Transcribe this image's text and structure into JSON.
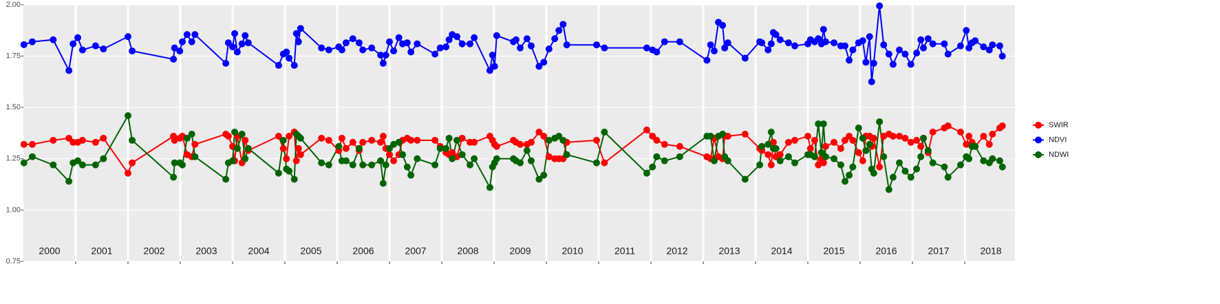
{
  "chart_data": {
    "type": "line",
    "x": [
      2000.01,
      2000.17,
      2000.57,
      2000.87,
      2000.95,
      2001.04,
      2001.13,
      2001.38,
      2001.53,
      2002.0,
      2002.08,
      2002.87,
      2002.89,
      2002.99,
      2003.04,
      2003.13,
      2003.22,
      2003.28,
      2003.87,
      2003.92,
      2004.0,
      2004.04,
      2004.09,
      2004.18,
      2004.24,
      2004.3,
      2004.88,
      2004.97,
      2005.03,
      2005.08,
      2005.18,
      2005.22,
      2005.26,
      2005.3,
      2005.7,
      2005.84,
      2006.03,
      2006.09,
      2006.17,
      2006.3,
      2006.42,
      2006.49,
      2006.66,
      2006.83,
      2006.88,
      2006.93,
      2007.0,
      2007.08,
      2007.18,
      2007.25,
      2007.34,
      2007.41,
      2007.53,
      2007.87,
      2007.97,
      2008.08,
      2008.14,
      2008.2,
      2008.29,
      2008.39,
      2008.54,
      2008.62,
      2008.92,
      2008.97,
      2009.01,
      2009.05,
      2009.37,
      2009.42,
      2009.5,
      2009.63,
      2009.71,
      2009.86,
      2009.95,
      2010.05,
      2010.16,
      2010.24,
      2010.32,
      2010.39,
      2010.96,
      2011.11,
      2011.92,
      2012.03,
      2012.11,
      2012.26,
      2012.55,
      2013.07,
      2013.14,
      2013.21,
      2013.29,
      2013.37,
      2013.41,
      2013.47,
      2013.8,
      2014.08,
      2014.12,
      2014.24,
      2014.3,
      2014.34,
      2014.39,
      2014.47,
      2014.63,
      2014.75,
      2015.0,
      2015.05,
      2015.13,
      2015.2,
      2015.26,
      2015.3,
      2015.34,
      2015.5,
      2015.63,
      2015.71,
      2015.79,
      2015.86,
      2015.97,
      2016.05,
      2016.11,
      2016.18,
      2016.22,
      2016.26,
      2016.37,
      2016.45,
      2016.55,
      2016.63,
      2016.75,
      2016.86,
      2016.97,
      2017.08,
      2017.16,
      2017.21,
      2017.3,
      2017.39,
      2017.61,
      2017.68,
      2017.92,
      2018.03,
      2018.08,
      2018.14,
      2018.2,
      2018.36,
      2018.47,
      2018.53,
      2018.67,
      2018.72
    ],
    "series": [
      {
        "name": "SWIR",
        "color": "#ff0000",
        "values": [
          1.32,
          1.32,
          1.34,
          1.35,
          1.33,
          1.33,
          1.34,
          1.33,
          1.35,
          1.18,
          1.23,
          1.36,
          1.34,
          1.35,
          1.36,
          1.27,
          1.26,
          1.32,
          1.37,
          1.36,
          1.31,
          1.24,
          1.36,
          1.23,
          1.34,
          1.29,
          1.36,
          1.3,
          1.25,
          1.36,
          1.38,
          1.24,
          1.3,
          1.27,
          1.35,
          1.34,
          1.29,
          1.35,
          1.3,
          1.33,
          1.29,
          1.33,
          1.34,
          1.33,
          1.36,
          1.3,
          1.27,
          1.24,
          1.27,
          1.34,
          1.35,
          1.34,
          1.34,
          1.34,
          1.31,
          1.28,
          1.27,
          1.28,
          1.26,
          1.35,
          1.33,
          1.33,
          1.36,
          1.34,
          1.32,
          1.31,
          1.34,
          1.33,
          1.32,
          1.32,
          1.33,
          1.38,
          1.36,
          1.26,
          1.25,
          1.25,
          1.25,
          1.33,
          1.34,
          1.23,
          1.39,
          1.36,
          1.34,
          1.32,
          1.31,
          1.26,
          1.25,
          1.35,
          1.26,
          1.25,
          1.36,
          1.36,
          1.37,
          1.3,
          1.29,
          1.27,
          1.22,
          1.33,
          1.26,
          1.27,
          1.33,
          1.34,
          1.36,
          1.3,
          1.34,
          1.22,
          1.25,
          1.23,
          1.31,
          1.33,
          1.3,
          1.34,
          1.36,
          1.34,
          1.28,
          1.24,
          1.36,
          1.36,
          1.31,
          1.35,
          1.21,
          1.36,
          1.37,
          1.36,
          1.36,
          1.35,
          1.33,
          1.34,
          1.31,
          1.35,
          1.28,
          1.38,
          1.4,
          1.41,
          1.38,
          1.32,
          1.36,
          1.33,
          1.31,
          1.36,
          1.32,
          1.37,
          1.4,
          1.41
        ]
      },
      {
        "name": "NDVI",
        "color": "#0000ff",
        "values": [
          1.806,
          1.82,
          1.83,
          1.68,
          1.81,
          1.84,
          1.78,
          1.8,
          1.785,
          1.845,
          1.775,
          1.735,
          1.79,
          1.775,
          1.82,
          1.855,
          1.82,
          1.855,
          1.715,
          1.815,
          1.795,
          1.86,
          1.77,
          1.81,
          1.85,
          1.815,
          1.705,
          1.76,
          1.77,
          1.74,
          1.705,
          1.86,
          1.82,
          1.885,
          1.79,
          1.78,
          1.795,
          1.78,
          1.815,
          1.835,
          1.815,
          1.78,
          1.79,
          1.755,
          1.715,
          1.755,
          1.82,
          1.775,
          1.84,
          1.81,
          1.815,
          1.77,
          1.81,
          1.76,
          1.79,
          1.795,
          1.83,
          1.855,
          1.845,
          1.81,
          1.81,
          1.84,
          1.68,
          1.755,
          1.7,
          1.85,
          1.82,
          1.83,
          1.79,
          1.835,
          1.8,
          1.7,
          1.72,
          1.785,
          1.835,
          1.875,
          1.905,
          1.805,
          1.805,
          1.79,
          1.79,
          1.78,
          1.77,
          1.82,
          1.82,
          1.73,
          1.805,
          1.775,
          1.915,
          1.9,
          1.79,
          1.815,
          1.74,
          1.82,
          1.815,
          1.78,
          1.81,
          1.865,
          1.855,
          1.83,
          1.815,
          1.8,
          1.81,
          1.83,
          1.82,
          1.835,
          1.81,
          1.88,
          1.82,
          1.815,
          1.8,
          1.8,
          1.73,
          1.78,
          1.815,
          1.825,
          1.72,
          1.845,
          1.625,
          1.715,
          1.995,
          1.805,
          1.76,
          1.71,
          1.78,
          1.76,
          1.71,
          1.765,
          1.83,
          1.79,
          1.835,
          1.81,
          1.81,
          1.76,
          1.8,
          1.875,
          1.79,
          1.815,
          1.825,
          1.795,
          1.78,
          1.805,
          1.8,
          1.75
        ]
      },
      {
        "name": "NDWI",
        "color": "#006400",
        "values": [
          1.23,
          1.26,
          1.22,
          1.14,
          1.23,
          1.24,
          1.22,
          1.22,
          1.25,
          1.46,
          1.34,
          1.16,
          1.23,
          1.23,
          1.22,
          1.35,
          1.37,
          1.26,
          1.15,
          1.23,
          1.24,
          1.38,
          1.3,
          1.37,
          1.25,
          1.3,
          1.18,
          1.34,
          1.2,
          1.19,
          1.15,
          1.37,
          1.36,
          1.35,
          1.23,
          1.22,
          1.31,
          1.24,
          1.24,
          1.22,
          1.3,
          1.22,
          1.22,
          1.24,
          1.13,
          1.22,
          1.3,
          1.32,
          1.33,
          1.27,
          1.21,
          1.17,
          1.25,
          1.22,
          1.3,
          1.3,
          1.35,
          1.25,
          1.34,
          1.27,
          1.22,
          1.25,
          1.11,
          1.21,
          1.23,
          1.25,
          1.25,
          1.24,
          1.23,
          1.29,
          1.24,
          1.15,
          1.17,
          1.34,
          1.35,
          1.36,
          1.34,
          1.27,
          1.23,
          1.38,
          1.18,
          1.21,
          1.26,
          1.24,
          1.26,
          1.36,
          1.36,
          1.24,
          1.36,
          1.37,
          1.26,
          1.24,
          1.15,
          1.22,
          1.31,
          1.32,
          1.38,
          1.3,
          1.3,
          1.24,
          1.26,
          1.23,
          1.27,
          1.27,
          1.26,
          1.42,
          1.28,
          1.42,
          1.26,
          1.25,
          1.22,
          1.14,
          1.17,
          1.21,
          1.4,
          1.35,
          1.29,
          1.32,
          1.2,
          1.18,
          1.43,
          1.26,
          1.1,
          1.16,
          1.23,
          1.19,
          1.16,
          1.2,
          1.26,
          1.35,
          1.29,
          1.23,
          1.21,
          1.16,
          1.22,
          1.26,
          1.25,
          1.31,
          1.31,
          1.24,
          1.23,
          1.25,
          1.24,
          1.21
        ]
      }
    ],
    "xlim": [
      2000,
      2018.96
    ],
    "xticks": [
      2001,
      2002,
      2003,
      2004,
      2005,
      2006,
      2007,
      2008,
      2009,
      2010,
      2011,
      2012,
      2013,
      2014,
      2015,
      2016,
      2017,
      2018
    ],
    "year_labels": [
      2000,
      2001,
      2002,
      2003,
      2004,
      2005,
      2006,
      2007,
      2008,
      2009,
      2010,
      2011,
      2012,
      2013,
      2014,
      2015,
      2016,
      2017,
      2018
    ],
    "ylim": [
      0.75,
      2.0
    ],
    "yticks": [
      {
        "value": 0.75,
        "label": "0.75"
      },
      {
        "value": 1.0,
        "label": "1.00"
      },
      {
        "value": 1.25,
        "label": "1.25"
      },
      {
        "value": 1.5,
        "label": "1.50"
      },
      {
        "value": 1.75,
        "label": "1.75"
      },
      {
        "value": 2.0,
        "label": "2.00"
      }
    ],
    "grid": true,
    "legend_position": "right"
  }
}
